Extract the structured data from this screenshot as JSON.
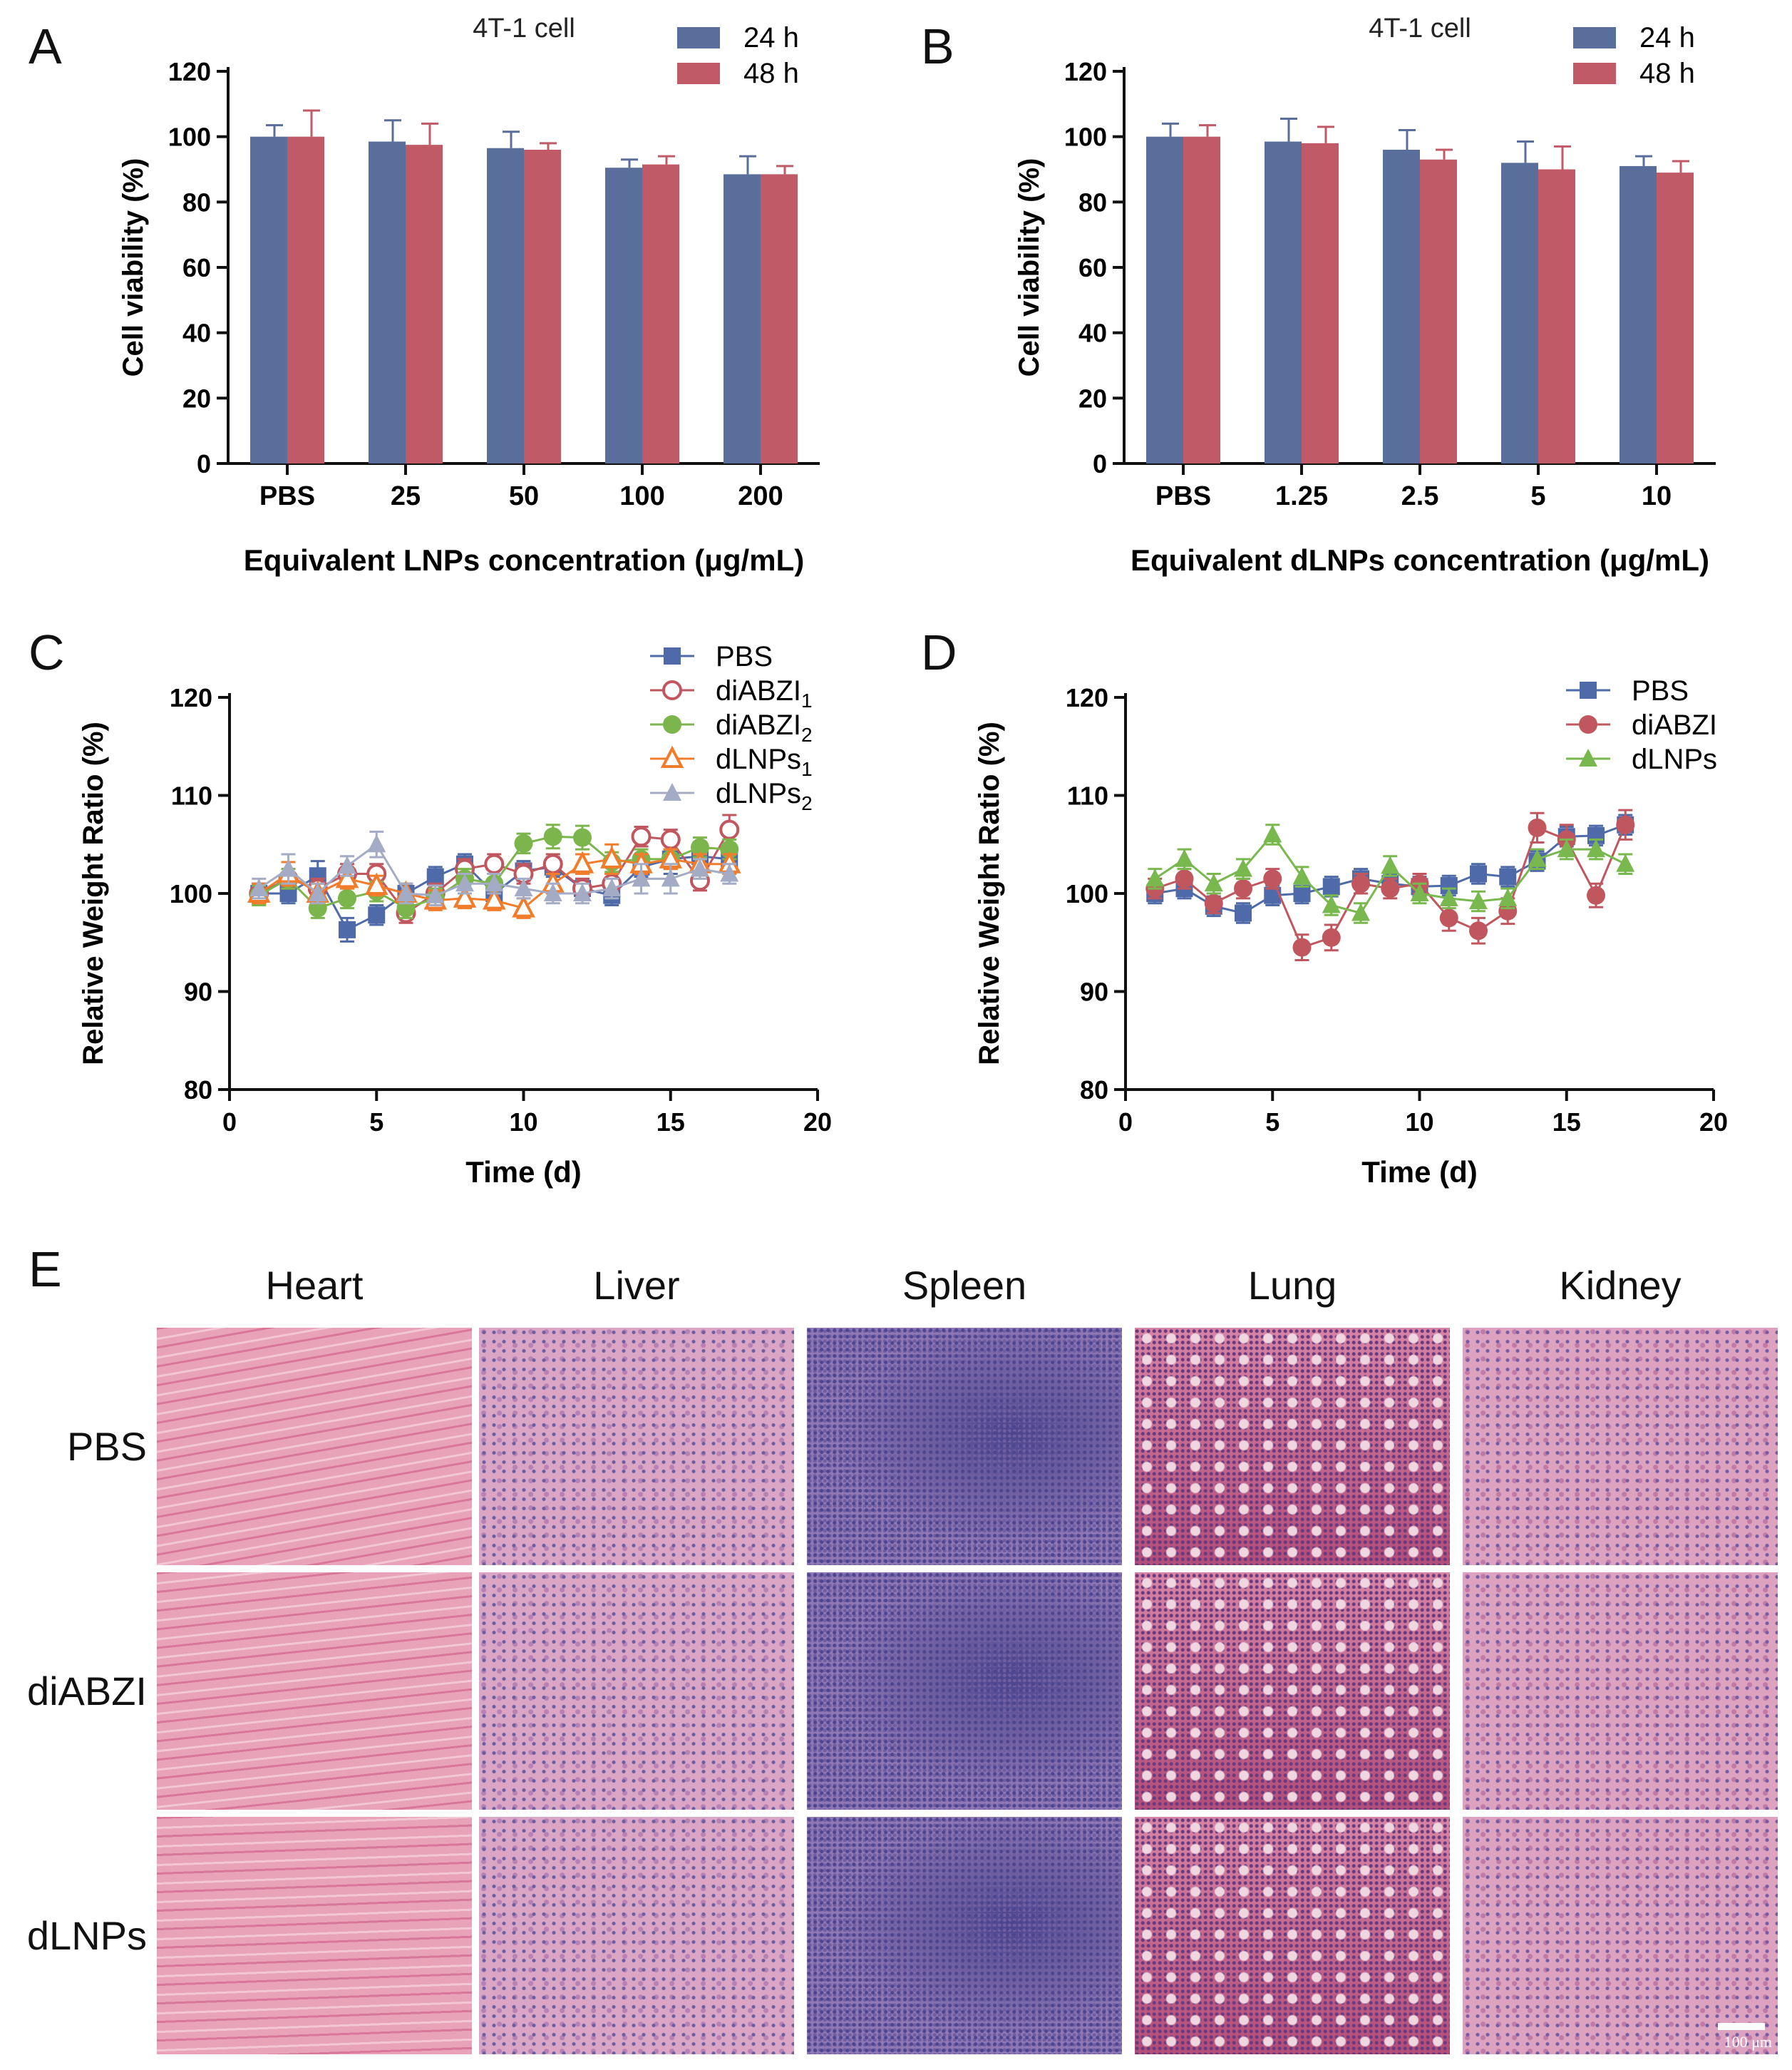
{
  "panels": {
    "A": {
      "letter": "A"
    },
    "B": {
      "letter": "B"
    },
    "C": {
      "letter": "C"
    },
    "D": {
      "letter": "D"
    },
    "E": {
      "letter": "E"
    }
  },
  "colors": {
    "bar_24h": "#5a6e9b",
    "bar_48h": "#c05a66",
    "pbs": "#4f6aa8",
    "diabzi": "#c0575f",
    "diabzi2": "#7bb54b",
    "dlnps1": "#f07c2c",
    "dlnps2": "#a3acc4",
    "dlnps": "#79b84e"
  },
  "chart_data": [
    {
      "id": "A",
      "type": "bar",
      "title": "4T-1 cell",
      "xlabel": "Equivalent LNPs concentration (μg/mL)",
      "ylabel": "Cell viability (%)",
      "ylim": [
        0,
        120
      ],
      "yticks": [
        0,
        20,
        40,
        60,
        80,
        100,
        120
      ],
      "categories": [
        "PBS",
        "25",
        "50",
        "100",
        "200"
      ],
      "series": [
        {
          "name": "24 h",
          "values": [
            100,
            98.5,
            96.5,
            90.5,
            88.5
          ],
          "errors": [
            3.5,
            6.5,
            5,
            2.5,
            5.5
          ]
        },
        {
          "name": "48 h",
          "values": [
            100,
            97.5,
            96,
            91.5,
            88.5
          ],
          "errors": [
            8,
            6.5,
            2,
            2.5,
            2.5
          ]
        }
      ]
    },
    {
      "id": "B",
      "type": "bar",
      "title": "4T-1 cell",
      "xlabel": "Equivalent dLNPs concentration (μg/mL)",
      "ylabel": "Cell viability (%)",
      "ylim": [
        0,
        120
      ],
      "yticks": [
        0,
        20,
        40,
        60,
        80,
        100,
        120
      ],
      "categories": [
        "PBS",
        "1.25",
        "2.5",
        "5",
        "10"
      ],
      "series": [
        {
          "name": "24 h",
          "values": [
            100,
            98.5,
            96,
            92,
            91
          ],
          "errors": [
            4,
            7,
            6,
            6.5,
            3
          ]
        },
        {
          "name": "48 h",
          "values": [
            100,
            98,
            93,
            90,
            89
          ],
          "errors": [
            3.5,
            5,
            3,
            7,
            3.5
          ]
        }
      ]
    },
    {
      "id": "C",
      "type": "line",
      "xlabel": "Time (d)",
      "ylabel": "Relative Weight Ratio (%)",
      "xlim": [
        0,
        20
      ],
      "xticks": [
        0,
        5,
        10,
        15,
        20
      ],
      "ylim": [
        80,
        120
      ],
      "yticks": [
        80,
        90,
        100,
        110,
        120
      ],
      "x": [
        1,
        2,
        3,
        4,
        5,
        6,
        7,
        8,
        9,
        10,
        11,
        12,
        13,
        14,
        15,
        16,
        17
      ],
      "series": [
        {
          "name": "PBS",
          "sub": "",
          "marker": "square",
          "color_key": "pbs",
          "values": [
            100,
            100,
            101.8,
            96.3,
            97.8,
            100,
            101.7,
            103,
            100,
            102.3,
            102.7,
            100.5,
            99.8,
            102.7,
            103.5,
            103.8,
            103.5
          ],
          "errors": [
            1,
            1,
            1.5,
            1.2,
            1,
            1,
            1,
            1,
            1,
            1,
            1,
            1,
            1,
            1,
            1.5,
            1,
            1
          ]
        },
        {
          "name": "diABZI",
          "sub": "1",
          "marker": "open-circle",
          "color_key": "diabzi",
          "values": [
            100,
            101.5,
            100.5,
            102,
            102,
            98,
            100,
            102.5,
            103,
            102,
            103,
            100.5,
            101,
            105.8,
            105.5,
            101.3,
            106.5
          ],
          "errors": [
            1,
            1,
            1,
            1,
            1,
            1,
            1,
            1,
            1,
            1,
            1,
            1,
            1,
            1,
            1,
            1,
            1.5
          ]
        },
        {
          "name": "diABZI",
          "sub": "2",
          "marker": "filled-circle",
          "color_key": "diabzi2",
          "values": [
            99.8,
            101.5,
            98.5,
            99.5,
            100.2,
            98.5,
            99.5,
            101.5,
            101,
            105.1,
            105.8,
            105.7,
            103.2,
            103.5,
            103.5,
            104.7,
            104.5
          ],
          "errors": [
            1,
            1,
            1,
            1,
            1,
            1,
            1,
            1,
            1,
            1,
            1.2,
            1.2,
            1,
            1,
            1,
            1,
            1
          ]
        },
        {
          "name": "dLNPs",
          "sub": "1",
          "marker": "open-triangle",
          "color_key": "dlnps1",
          "values": [
            100,
            102,
            100,
            101.5,
            100.8,
            100,
            99.3,
            99.5,
            99.3,
            98.5,
            101,
            103,
            103.5,
            103,
            103.5,
            103,
            103
          ],
          "errors": [
            1,
            1.2,
            1,
            1,
            1,
            1,
            1,
            1,
            1,
            1,
            1,
            1,
            1.5,
            1,
            1,
            1,
            1
          ]
        },
        {
          "name": "dLNPs",
          "sub": "2",
          "marker": "filled-triangle",
          "color_key": "dlnps2",
          "values": [
            100.5,
            102.5,
            100,
            102.8,
            105,
            100,
            99.8,
            101,
            101,
            100.5,
            100,
            100,
            100.5,
            101.5,
            101.5,
            102.5,
            102
          ],
          "errors": [
            1,
            1.5,
            1,
            1,
            1.3,
            1,
            1,
            1,
            1,
            1,
            1,
            1,
            1,
            1.5,
            1.5,
            1,
            1
          ]
        }
      ]
    },
    {
      "id": "D",
      "type": "line",
      "xlabel": "Time (d)",
      "ylabel": "Relative Weight Ratio (%)",
      "xlim": [
        0,
        20
      ],
      "xticks": [
        0,
        5,
        10,
        15,
        20
      ],
      "ylim": [
        80,
        120
      ],
      "yticks": [
        80,
        90,
        100,
        110,
        120
      ],
      "x": [
        1,
        2,
        3,
        4,
        5,
        6,
        7,
        8,
        9,
        10,
        11,
        12,
        13,
        14,
        15,
        16,
        17
      ],
      "series": [
        {
          "name": "PBS",
          "sub": "",
          "marker": "square",
          "color_key": "pbs",
          "values": [
            100,
            100.5,
            98.7,
            98,
            99.8,
            100,
            100.7,
            101.5,
            101,
            100.7,
            100.8,
            102,
            101.7,
            103.3,
            105.8,
            105.9,
            107
          ],
          "errors": [
            1,
            1,
            1,
            1,
            1,
            1,
            1,
            1,
            1,
            1,
            1,
            1,
            1,
            1,
            1,
            1,
            1
          ]
        },
        {
          "name": "diABZI",
          "sub": "",
          "marker": "filled-circle",
          "color_key": "diabzi",
          "values": [
            100.5,
            101.5,
            99,
            100.5,
            101.5,
            94.5,
            95.5,
            101,
            100.5,
            101,
            97.5,
            96.2,
            98.2,
            106.7,
            105.5,
            99.8,
            107
          ],
          "errors": [
            1,
            1,
            1,
            1,
            1,
            1.3,
            1.3,
            1,
            1,
            1,
            1.3,
            1.3,
            1.3,
            1.5,
            1.5,
            1.2,
            1.5
          ]
        },
        {
          "name": "dLNPs",
          "sub": "",
          "marker": "filled-triangle",
          "color_key": "dlnps",
          "values": [
            101.5,
            103.5,
            101,
            102.5,
            106,
            101.7,
            98.8,
            98,
            102.8,
            100,
            99.5,
            99.2,
            99.5,
            103.5,
            104.5,
            104.5,
            103
          ],
          "errors": [
            1,
            1,
            1,
            1,
            1,
            1,
            1,
            1,
            1,
            1,
            1,
            1,
            1,
            1,
            1,
            1,
            1
          ]
        }
      ]
    }
  ],
  "histology": {
    "columns": [
      "Heart",
      "Liver",
      "Spleen",
      "Lung",
      "Kidney"
    ],
    "rows": [
      "PBS",
      "diABZI",
      "dLNPs"
    ],
    "scale_bar": "100 μm"
  }
}
